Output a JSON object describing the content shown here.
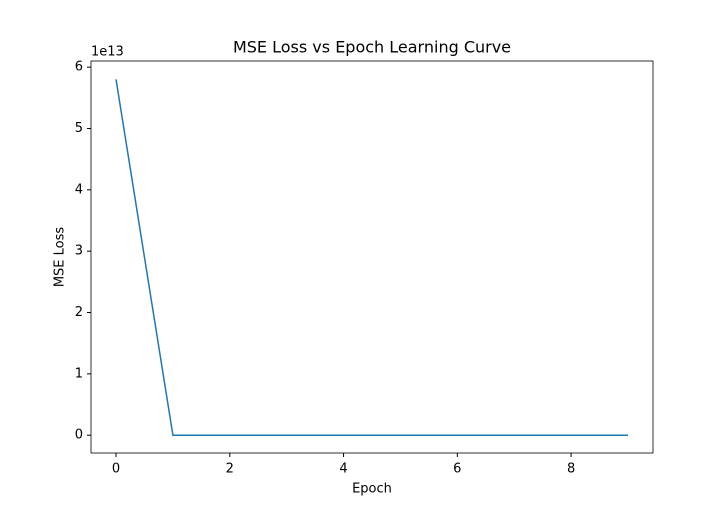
{
  "chart_data": {
    "type": "line",
    "title": "MSE Loss vs Epoch Learning Curve",
    "x_label": "Epoch",
    "y_label": "MSE Loss",
    "y_offset_label": "1e13",
    "x": [
      0,
      1,
      2,
      3,
      4,
      5,
      6,
      7,
      8,
      9
    ],
    "series": [
      {
        "name": "MSE Loss",
        "color": "#1f77b4",
        "values": [
          5.8,
          0,
          0,
          0,
          0,
          0,
          0,
          0,
          0,
          0
        ]
      }
    ],
    "xlim": [
      -0.44,
      9.44
    ],
    "ylim": [
      -0.29,
      6.1
    ],
    "xticks": [
      0,
      2,
      4,
      6,
      8
    ],
    "yticks": [
      0,
      1,
      2,
      3,
      4,
      5,
      6
    ]
  }
}
